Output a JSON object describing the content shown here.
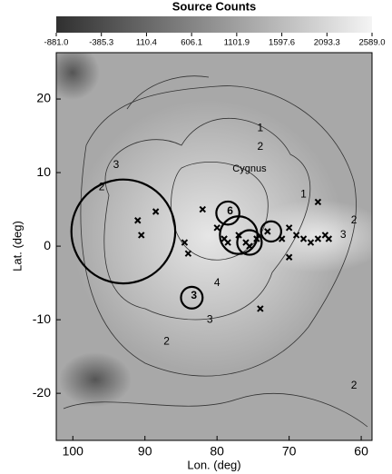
{
  "chart_data": {
    "type": "skymap",
    "colorbar": {
      "title": "Source Counts",
      "clim": [
        -881.0,
        2589.0
      ],
      "ticks": [
        {
          "value": -881.0,
          "label": "-881.0"
        },
        {
          "value": -385.3,
          "label": "-385.3"
        },
        {
          "value": 110.4,
          "label": "110.4"
        },
        {
          "value": 606.1,
          "label": "606.1"
        },
        {
          "value": 1101.9,
          "label": "1101.9"
        },
        {
          "value": 1597.6,
          "label": "1597.6"
        },
        {
          "value": 2093.3,
          "label": "2093.3"
        },
        {
          "value": 2589.0,
          "label": "2589.0"
        }
      ]
    },
    "x_label": "Lon. (deg)",
    "y_label": "Lat. (deg)",
    "xlim": [
      102.3,
      58.5
    ],
    "xticks": [
      100,
      90,
      80,
      70,
      60
    ],
    "ylim": [
      -26.4,
      26.3
    ],
    "yticks": [
      20,
      10,
      0,
      -10,
      -20
    ],
    "region_label": "Cygnus",
    "contour_labels": [
      "2",
      "3",
      "2",
      "1",
      "4",
      "3",
      "2",
      "3",
      "2",
      "2",
      "1"
    ],
    "circles": {
      "lon": [
        93,
        78.5,
        77,
        75.5,
        72.5,
        83.5
      ],
      "lat": [
        2,
        4.5,
        1.5,
        0.5,
        2,
        -7
      ],
      "radius": [
        7.2,
        1.6,
        2.6,
        1.7,
        1.4,
        1.5
      ],
      "labels": [
        null,
        "6",
        null,
        null,
        null,
        "3"
      ]
    },
    "sources": {
      "lon": [
        88.5,
        90.5,
        82,
        84.5,
        84,
        80,
        79,
        78.5,
        77,
        76,
        75.5,
        74.5,
        73,
        71,
        70,
        69,
        68,
        67,
        66,
        65,
        64.5,
        66,
        70,
        74,
        91
      ],
      "lat": [
        4.7,
        1.5,
        5,
        0.5,
        -1,
        2.5,
        1,
        0.5,
        1.5,
        0.5,
        0,
        1,
        2,
        1,
        2.5,
        1.5,
        1,
        0.5,
        1,
        1.5,
        1,
        6,
        -1.5,
        -8.5,
        3.5
      ]
    }
  }
}
